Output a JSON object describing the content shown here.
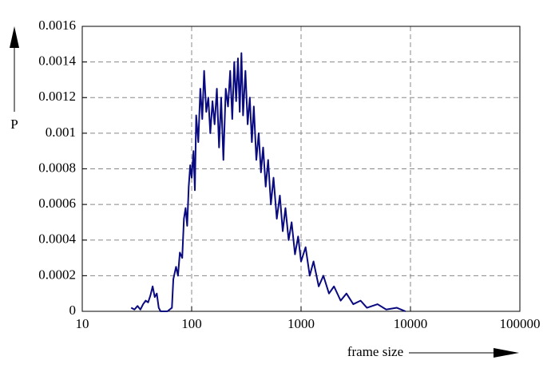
{
  "chart_data": {
    "type": "line",
    "x_label": "frame size",
    "y_label": "P",
    "xscale": "log",
    "grid": true,
    "color": "#0a0a80",
    "xlim": [
      10,
      100000
    ],
    "xticks": [
      10,
      100,
      1000,
      10000,
      100000
    ],
    "ylim": [
      0,
      0.0016
    ],
    "yticks": [
      0,
      0.0002,
      0.0004,
      0.0006,
      0.0008,
      0.001,
      0.0012,
      0.0014,
      0.0016
    ],
    "x": [
      28,
      30,
      32,
      34,
      36,
      38,
      40,
      42,
      44,
      46,
      48,
      50,
      52,
      60,
      66,
      68,
      72,
      75,
      78,
      82,
      85,
      88,
      91,
      94,
      97,
      100,
      104,
      107,
      110,
      115,
      120,
      125,
      130,
      136,
      142,
      148,
      155,
      162,
      170,
      178,
      186,
      195,
      205,
      215,
      225,
      235,
      245,
      255,
      265,
      275,
      285,
      295,
      310,
      325,
      340,
      355,
      370,
      390,
      410,
      430,
      450,
      475,
      500,
      530,
      560,
      600,
      640,
      680,
      720,
      770,
      820,
      880,
      940,
      1000,
      1100,
      1200,
      1300,
      1450,
      1600,
      1800,
      2000,
      2300,
      2600,
      3000,
      3500,
      4000,
      5000,
      6000,
      7500,
      9000
    ],
    "values": [
      2e-05,
      1e-05,
      3e-05,
      1e-05,
      4e-05,
      6e-05,
      5e-05,
      9e-05,
      0.00014,
      8e-05,
      0.0001,
      2e-05,
      0,
      0,
      2e-05,
      0.00018,
      0.00025,
      0.0002,
      0.00033,
      0.0003,
      0.00052,
      0.00058,
      0.00048,
      0.0007,
      0.00082,
      0.00075,
      0.0009,
      0.00068,
      0.0011,
      0.00095,
      0.00125,
      0.00108,
      0.00135,
      0.00112,
      0.0012,
      0.001,
      0.00118,
      0.00105,
      0.00125,
      0.00092,
      0.0012,
      0.00085,
      0.00125,
      0.00115,
      0.00135,
      0.00108,
      0.0014,
      0.00118,
      0.00142,
      0.00112,
      0.00145,
      0.0011,
      0.00135,
      0.00105,
      0.0012,
      0.00095,
      0.00115,
      0.00085,
      0.001,
      0.00078,
      0.00092,
      0.0007,
      0.00085,
      0.0006,
      0.00075,
      0.00052,
      0.00065,
      0.00045,
      0.00058,
      0.0004,
      0.0005,
      0.00032,
      0.00042,
      0.00028,
      0.00036,
      0.0002,
      0.00028,
      0.00014,
      0.0002,
      0.0001,
      0.00014,
      6e-05,
      0.0001,
      4e-05,
      6e-05,
      2e-05,
      4e-05,
      1e-05,
      2e-05,
      0
    ]
  }
}
